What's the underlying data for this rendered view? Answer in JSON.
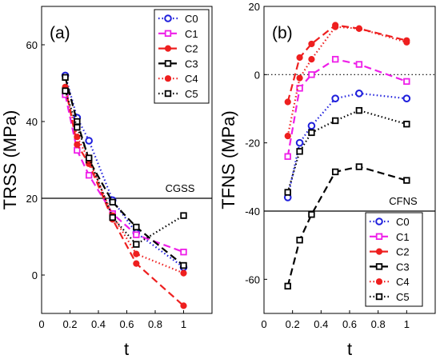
{
  "colors": {
    "C0": "#1f1fdc",
    "C1": "#ee1ee8",
    "C2": "#ee1f1f",
    "C3": "#000000",
    "C4": "#ee1f1f",
    "C5": "#000000"
  },
  "chart_data": [
    {
      "type": "line",
      "panel_label": "(a)",
      "xlabel": "t",
      "ylabel": "TRSS (MPa)",
      "xlim": [
        0,
        1.2
      ],
      "ylim": [
        -10,
        70
      ],
      "xticks": [
        0,
        0.2,
        0.4,
        0.6,
        0.8,
        1
      ],
      "xtick_labels": [
        "0",
        "0.2",
        "0.4",
        "0.6",
        "0.8",
        "1"
      ],
      "yticks": [
        0,
        20,
        40,
        60
      ],
      "ytick_labels": [
        "0",
        "20",
        "40",
        "60"
      ],
      "grid": false,
      "legend_position": "top-right",
      "reference_line": {
        "y": 20,
        "style": "solid",
        "label": "CGSS"
      },
      "series": [
        {
          "name": "C0",
          "marker": "circle",
          "linestyle": "dotted",
          "x": [
            0.1667,
            0.25,
            0.3333,
            0.5,
            0.6667,
            1
          ],
          "y": [
            52,
            41,
            35,
            19.5,
            11,
            2
          ]
        },
        {
          "name": "C1",
          "marker": "square-open",
          "linestyle": "dashed",
          "x": [
            0.1667,
            0.25,
            0.3333,
            0.5,
            0.6667,
            1
          ],
          "y": [
            47,
            32.5,
            26,
            16,
            10.5,
            6
          ]
        },
        {
          "name": "C2",
          "marker": "filled-circle",
          "linestyle": "dashed",
          "x": [
            0.1667,
            0.25,
            0.3333,
            0.5,
            0.6667,
            1
          ],
          "y": [
            49,
            34,
            29,
            14.5,
            3,
            -8
          ]
        },
        {
          "name": "C3",
          "marker": "square-open",
          "linestyle": "dashed",
          "x": [
            0.1667,
            0.25,
            0.3333,
            0.5,
            0.6667,
            1
          ],
          "y": [
            51.5,
            40,
            30,
            19,
            12.5,
            2.5
          ]
        },
        {
          "name": "C4",
          "marker": "filled-circle",
          "linestyle": "dotted",
          "x": [
            0.1667,
            0.25,
            0.3333,
            0.5,
            0.6667,
            1
          ],
          "y": [
            48.5,
            36,
            30,
            15.5,
            5.5,
            0.5
          ]
        },
        {
          "name": "C5",
          "marker": "square-open",
          "linestyle": "dotted",
          "x": [
            0.1667,
            0.25,
            0.3333,
            0.5,
            0.6667,
            1
          ],
          "y": [
            48,
            38.5,
            30.5,
            15,
            8,
            15.5
          ]
        }
      ]
    },
    {
      "type": "line",
      "panel_label": "(b)",
      "xlabel": "t",
      "ylabel": "TFNS (MPa)",
      "xlim": [
        0,
        1.2
      ],
      "ylim": [
        -70,
        20
      ],
      "xticks": [
        0,
        0.2,
        0.4,
        0.6,
        0.8,
        1
      ],
      "xtick_labels": [
        "0",
        "0.2",
        "0.4",
        "0.6",
        "0.8",
        "1"
      ],
      "yticks": [
        -60,
        -40,
        -20,
        0,
        20
      ],
      "ytick_labels": [
        "-60",
        "-40",
        "-20",
        "0",
        "20"
      ],
      "grid": false,
      "legend_position": "bottom-right",
      "zero_line": {
        "y": 0,
        "style": "dotted"
      },
      "reference_line": {
        "y": -40,
        "style": "solid",
        "label": "CFNS"
      },
      "series": [
        {
          "name": "C0",
          "marker": "circle",
          "linestyle": "dotted",
          "x": [
            0.1667,
            0.25,
            0.3333,
            0.5,
            0.6667,
            1
          ],
          "y": [
            -36,
            -20,
            -15,
            -7,
            -5.5,
            -7
          ]
        },
        {
          "name": "C1",
          "marker": "square-open",
          "linestyle": "dashed",
          "x": [
            0.1667,
            0.25,
            0.3333,
            0.5,
            0.6667,
            1
          ],
          "y": [
            -24,
            -4,
            0,
            4.5,
            3,
            -2
          ]
        },
        {
          "name": "C2",
          "marker": "filled-circle",
          "linestyle": "dashed",
          "x": [
            0.1667,
            0.25,
            0.3333,
            0.5,
            0.6667,
            1
          ],
          "y": [
            -8,
            5,
            9,
            14.5,
            13.5,
            10
          ]
        },
        {
          "name": "C3",
          "marker": "square-open",
          "linestyle": "dashed",
          "x": [
            0.1667,
            0.25,
            0.3333,
            0.5,
            0.6667,
            1
          ],
          "y": [
            -62,
            -48.5,
            -41,
            -28.5,
            -27,
            -31
          ]
        },
        {
          "name": "C4",
          "marker": "filled-circle",
          "linestyle": "dotted",
          "x": [
            0.1667,
            0.25,
            0.3333,
            0.5,
            0.6667,
            1
          ],
          "y": [
            -18,
            -1,
            4.5,
            14,
            13.5,
            9.5
          ]
        },
        {
          "name": "C5",
          "marker": "square-open",
          "linestyle": "dotted",
          "x": [
            0.1667,
            0.25,
            0.3333,
            0.5,
            0.6667,
            1
          ],
          "y": [
            -34.5,
            -22.5,
            -17,
            -13.5,
            -10.5,
            -14.5
          ]
        }
      ]
    }
  ]
}
